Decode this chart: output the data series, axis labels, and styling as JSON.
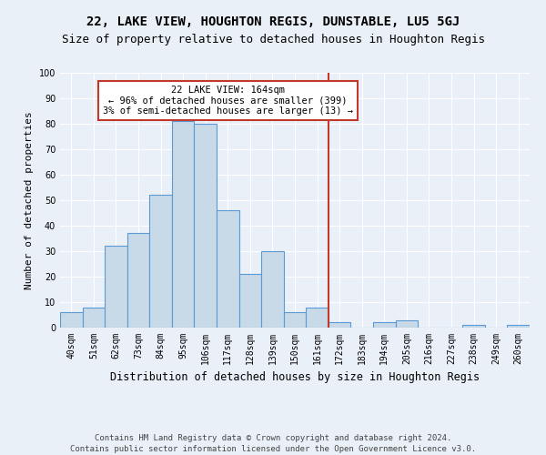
{
  "title": "22, LAKE VIEW, HOUGHTON REGIS, DUNSTABLE, LU5 5GJ",
  "subtitle": "Size of property relative to detached houses in Houghton Regis",
  "xlabel": "Distribution of detached houses by size in Houghton Regis",
  "ylabel": "Number of detached properties",
  "categories": [
    "40sqm",
    "51sqm",
    "62sqm",
    "73sqm",
    "84sqm",
    "95sqm",
    "106sqm",
    "117sqm",
    "128sqm",
    "139sqm",
    "150sqm",
    "161sqm",
    "172sqm",
    "183sqm",
    "194sqm",
    "205sqm",
    "216sqm",
    "227sqm",
    "238sqm",
    "249sqm",
    "260sqm"
  ],
  "values": [
    6,
    8,
    32,
    37,
    52,
    81,
    80,
    46,
    21,
    30,
    6,
    8,
    2,
    0,
    2,
    3,
    0,
    0,
    1,
    0,
    1
  ],
  "bar_color": "#c8d9e8",
  "bar_edge_color": "#5b9bd5",
  "bar_edge_width": 0.8,
  "vline_x": 11.5,
  "vline_color": "#c0392b",
  "annotation_text": "22 LAKE VIEW: 164sqm\n← 96% of detached houses are smaller (399)\n3% of semi-detached houses are larger (13) →",
  "annotation_box_color": "#c0392b",
  "ylim": [
    0,
    100
  ],
  "yticks": [
    0,
    10,
    20,
    30,
    40,
    50,
    60,
    70,
    80,
    90,
    100
  ],
  "background_color": "#eaf0f8",
  "plot_background": "#eaf0f8",
  "footer": "Contains HM Land Registry data © Crown copyright and database right 2024.\nContains public sector information licensed under the Open Government Licence v3.0.",
  "title_fontsize": 10,
  "subtitle_fontsize": 9,
  "xlabel_fontsize": 8.5,
  "ylabel_fontsize": 8,
  "tick_fontsize": 7,
  "footer_fontsize": 6.5,
  "annotation_fontsize": 7.5
}
